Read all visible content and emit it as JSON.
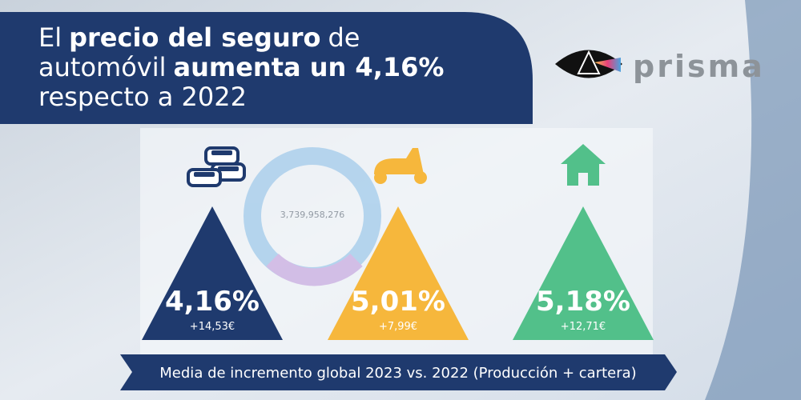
{
  "header": {
    "title_lines": [
      [
        {
          "text": "El",
          "bold": false
        },
        {
          "text": "precio del seguro",
          "bold": true
        },
        {
          "text": "de",
          "bold": false
        }
      ],
      [
        {
          "text": "automóvil",
          "bold": false
        },
        {
          "text": "aumenta un 4,16%",
          "bold": true
        }
      ],
      [
        {
          "text": "respecto a 2022",
          "bold": false
        }
      ]
    ]
  },
  "logo": {
    "text": "prisma"
  },
  "background": {
    "center_label": "3,739,958,276"
  },
  "items": [
    {
      "value": "4,16%",
      "amount": "+14,53€",
      "color": "#1f3a6e",
      "icon": "cars"
    },
    {
      "value": "5,01%",
      "amount": "+7,99€",
      "color": "#f6b73c",
      "icon": "scooter"
    },
    {
      "value": "5,18%",
      "amount": "+12,71€",
      "color": "#52c08a",
      "icon": "house"
    }
  ],
  "footer": {
    "text": "Media de incremento global 2023 vs. 2022 (Producción + cartera)"
  }
}
